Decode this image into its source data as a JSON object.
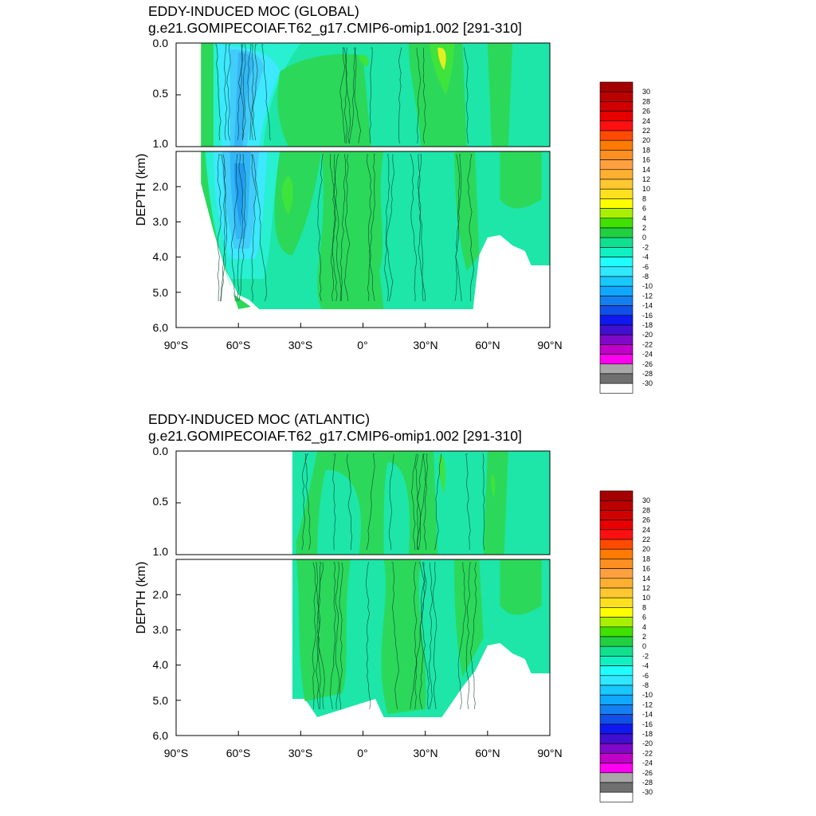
{
  "chart_data": [
    {
      "type": "heatmap",
      "title": "EDDY-INDUCED MOC (GLOBAL)",
      "subtitle": "g.e21.GOMIPECOIAF.T62_g17.CMIP6-omip1.002 [291-310]",
      "xlabel": "",
      "ylabel": "DEPTH (km)",
      "xlim": [
        -90,
        90
      ],
      "ylim_upper": [
        0.0,
        1.0
      ],
      "ylim_lower": [
        1.0,
        6.0
      ],
      "x_ticks": [
        "90°S",
        "60°S",
        "30°S",
        "0°",
        "30°N",
        "60°N",
        "90°N"
      ],
      "y_ticks_upper": [
        "0.0",
        "0.5",
        "1.0"
      ],
      "y_ticks_lower": [
        "2.0",
        "3.0",
        "4.0",
        "5.0",
        "6.0"
      ],
      "x_range_of_data": [
        -78,
        90
      ],
      "levels": [
        "30",
        "28",
        "26",
        "24",
        "22",
        "20",
        "18",
        "16",
        "14",
        "12",
        "10",
        "8",
        "6",
        "4",
        "2",
        "0",
        "-2",
        "-4",
        "-6",
        "-8",
        "-10",
        "-12",
        "-14",
        "-16",
        "-18",
        "-20",
        "-22",
        "-24",
        "-26",
        "-28",
        "-30"
      ],
      "features": [
        {
          "x": -55,
          "depth": 2.5,
          "value": -12
        },
        {
          "x": -55,
          "depth": 0.2,
          "value": -10
        },
        {
          "x": 38,
          "depth": 0.15,
          "value": 6
        },
        {
          "x": 0,
          "depth": 3.0,
          "value": -2
        }
      ]
    },
    {
      "type": "heatmap",
      "title": "EDDY-INDUCED MOC (ATLANTIC)",
      "subtitle": "g.e21.GOMIPECOIAF.T62_g17.CMIP6-omip1.002 [291-310]",
      "xlabel": "",
      "ylabel": "DEPTH (km)",
      "xlim": [
        -90,
        90
      ],
      "ylim_upper": [
        0.0,
        1.0
      ],
      "ylim_lower": [
        1.0,
        6.0
      ],
      "x_ticks": [
        "90°S",
        "60°S",
        "30°S",
        "0°",
        "30°N",
        "60°N",
        "90°N"
      ],
      "y_ticks_upper": [
        "0.0",
        "0.5",
        "1.0"
      ],
      "y_ticks_lower": [
        "2.0",
        "3.0",
        "4.0",
        "5.0",
        "6.0"
      ],
      "x_range_of_data": [
        -34,
        90
      ],
      "levels": [
        "30",
        "28",
        "26",
        "24",
        "22",
        "20",
        "18",
        "16",
        "14",
        "12",
        "10",
        "8",
        "6",
        "4",
        "2",
        "0",
        "-2",
        "-4",
        "-6",
        "-8",
        "-10",
        "-12",
        "-14",
        "-16",
        "-18",
        "-20",
        "-22",
        "-24",
        "-26",
        "-28",
        "-30"
      ],
      "features": [
        {
          "x": 40,
          "depth": 0.2,
          "value": 2
        },
        {
          "x": 0,
          "depth": 3.5,
          "value": -2
        }
      ]
    }
  ],
  "colorbar_colors": [
    "#a50000",
    "#bb0000",
    "#d00000",
    "#e80000",
    "#ff1010",
    "#ff4a00",
    "#ff7a00",
    "#ff8f20",
    "#ffa040",
    "#ffb030",
    "#ffc830",
    "#ffe020",
    "#ffff00",
    "#a8f000",
    "#40e000",
    "#20d040",
    "#10e090",
    "#10f0c0",
    "#20ffff",
    "#30e8ff",
    "#18c8ff",
    "#10a8ff",
    "#1480f0",
    "#1050e8",
    "#1018f0",
    "#4010d0",
    "#8008c8",
    "#c000c8",
    "#ff00f0",
    "#a8a8a8",
    "#707070",
    "#ffffff"
  ],
  "field_colors": {
    "neg12": "#1f9cf0",
    "neg10": "#33b6f6",
    "neg8": "#41ccfb",
    "neg6": "#3ee8ff",
    "neg4": "#28f0d0",
    "neg2": "#1de6a8",
    "zero": "#2cd85a",
    "pos2": "#3ee33c",
    "pos4": "#8ae81c",
    "pos6": "#e6ee20"
  }
}
